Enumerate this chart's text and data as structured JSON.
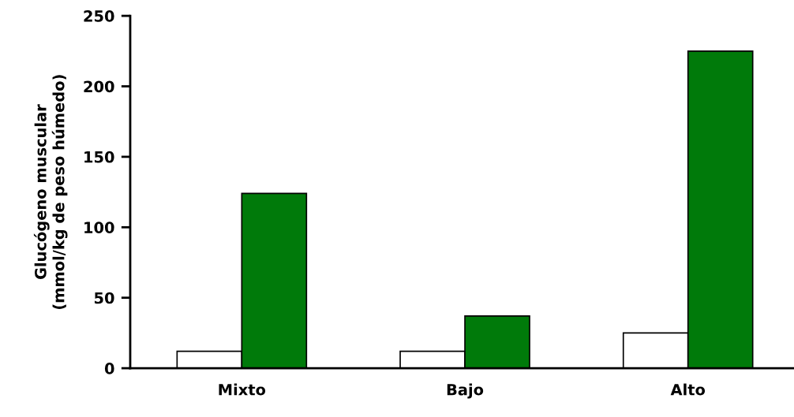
{
  "chart_data": {
    "type": "bar",
    "ylabel": "Glucógeno muscular\n(mmol/kg de peso húmedo)",
    "categories": [
      "Mixto",
      "Bajo",
      "Alto"
    ],
    "series": [
      {
        "color": "#ffffff",
        "values": [
          12,
          12,
          25
        ]
      },
      {
        "color": "#007a0a",
        "values": [
          124,
          37,
          225
        ]
      }
    ],
    "ylim": [
      0,
      250
    ],
    "yticks": [
      0,
      50,
      100,
      150,
      200,
      250
    ],
    "grid": false
  }
}
